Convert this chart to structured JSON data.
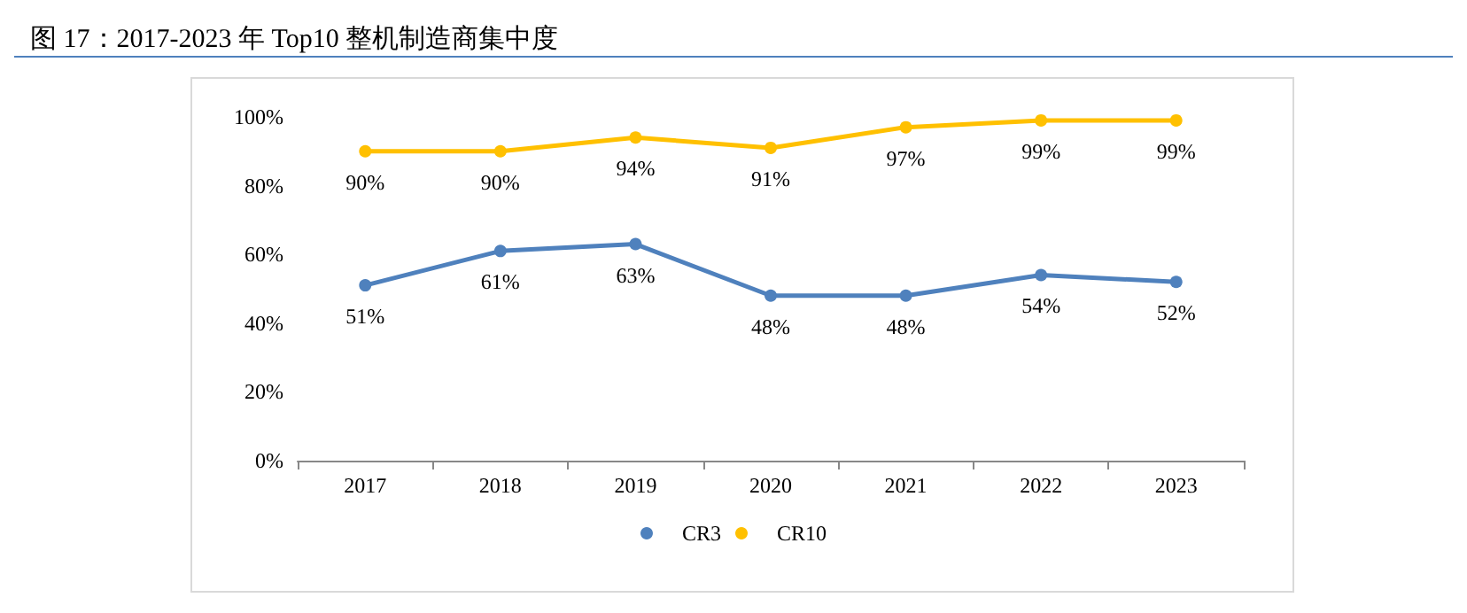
{
  "chart_data": {
    "type": "line",
    "title": "图 17：2017-2023 年 Top10 整机制造商集中度",
    "categories": [
      "2017",
      "2018",
      "2019",
      "2020",
      "2021",
      "2022",
      "2023"
    ],
    "series": [
      {
        "name": "CR3",
        "color": "#4f81bd",
        "values": [
          51,
          61,
          63,
          48,
          48,
          54,
          52
        ],
        "value_labels": [
          "51%",
          "61%",
          "63%",
          "48%",
          "48%",
          "54%",
          "52%"
        ]
      },
      {
        "name": "CR10",
        "color": "#ffc000",
        "values": [
          90,
          90,
          94,
          91,
          97,
          99,
          99
        ],
        "value_labels": [
          "90%",
          "90%",
          "94%",
          "91%",
          "97%",
          "99%",
          "99%"
        ]
      }
    ],
    "ylim": [
      0,
      100
    ],
    "yticks": [
      {
        "value": 0,
        "label": "0%"
      },
      {
        "value": 20,
        "label": "20%"
      },
      {
        "value": 40,
        "label": "40%"
      },
      {
        "value": 60,
        "label": "60%"
      },
      {
        "value": 80,
        "label": "80%"
      },
      {
        "value": 100,
        "label": "100%"
      }
    ],
    "grid": false,
    "legend": "bottom",
    "marker": "circle",
    "line_style": "solid"
  }
}
